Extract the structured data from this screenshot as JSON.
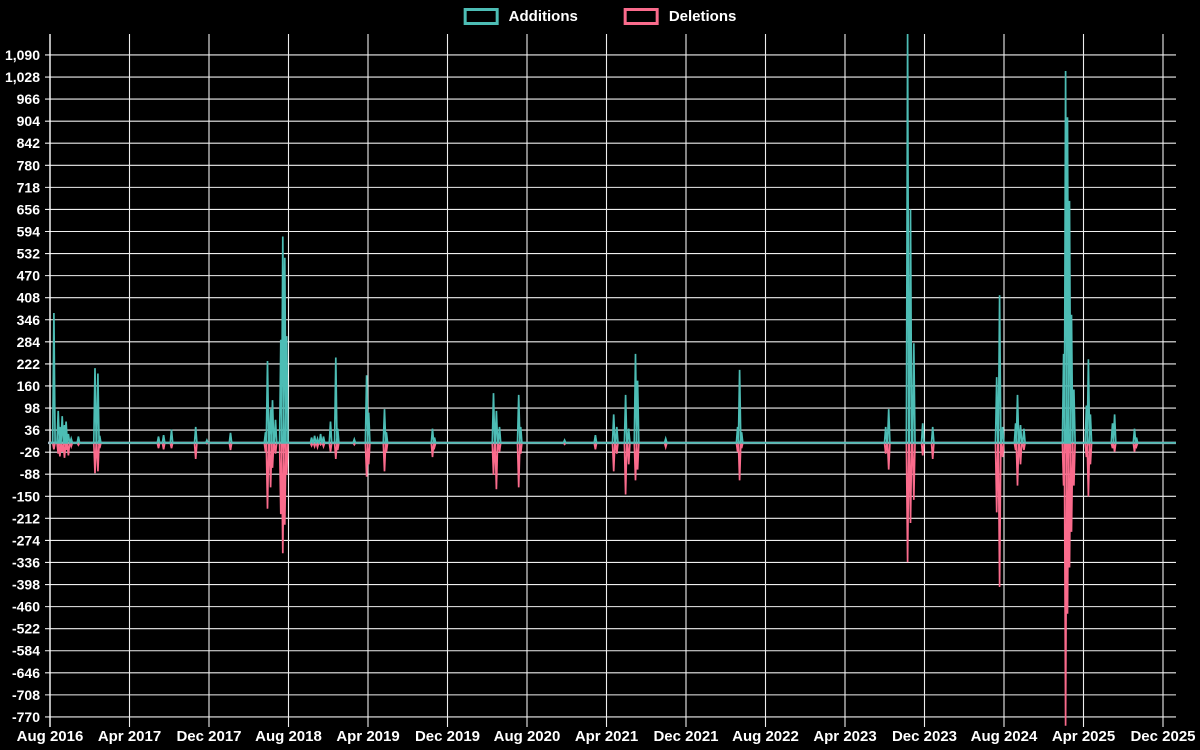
{
  "chart_data": {
    "type": "line",
    "title": "",
    "description": "Weekly additions (positive spikes) and deletions (negative spikes) over time; flat baseline at 0 between spikes.",
    "legend_position": "top-center",
    "background": "#000000",
    "grid": true,
    "colors": {
      "grid": "#eeeeee",
      "axis": "#ffffff",
      "zero_line": "#9db7c3",
      "text": "#ffffff",
      "background": "#000000"
    },
    "series": [
      {
        "name": "Additions",
        "color": "#4dbdb5",
        "sign": 1
      },
      {
        "name": "Deletions",
        "color": "#fa6b8c",
        "sign": -1
      }
    ],
    "ylim": [
      -798,
      1149
    ],
    "y_tick_step": 62,
    "y_ticks": [
      1090,
      1028,
      966,
      904,
      842,
      780,
      718,
      656,
      594,
      532,
      470,
      408,
      346,
      284,
      222,
      160,
      98,
      36,
      -26,
      -88,
      -150,
      -212,
      -274,
      -336,
      -398,
      -460,
      -522,
      -584,
      -646,
      -708,
      -770
    ],
    "x_tick_labels": [
      "Aug 2016",
      "Apr 2017",
      "Dec 2017",
      "Aug 2018",
      "Apr 2019",
      "Dec 2019",
      "Aug 2020",
      "Apr 2021",
      "Dec 2021",
      "Aug 2022",
      "Apr 2023",
      "Dec 2023",
      "Aug 2024",
      "Apr 2025",
      "Dec 2025"
    ],
    "x_start": "2016-08-01",
    "x_end": "2025-12-31",
    "baseline": 0,
    "notes": "Values estimated from gridlines. Additions spike 2023-10-10 is clipped at the plot top (>1,130); deletions spike 2025-02-07 is clipped at the plot bottom (beyond -770).",
    "events": [
      {
        "date": "2016-08-13",
        "additions": 365,
        "deletions": -18
      },
      {
        "date": "2016-08-26",
        "additions": 90,
        "deletions": -30
      },
      {
        "date": "2016-09-01",
        "additions": 45,
        "deletions": -38
      },
      {
        "date": "2016-09-08",
        "additions": 75,
        "deletions": -25
      },
      {
        "date": "2016-09-15",
        "additions": 50,
        "deletions": -42
      },
      {
        "date": "2016-09-20",
        "additions": 60,
        "deletions": -20
      },
      {
        "date": "2016-09-27",
        "additions": 25,
        "deletions": -35
      },
      {
        "date": "2016-10-05",
        "additions": 12,
        "deletions": -10
      },
      {
        "date": "2016-10-27",
        "additions": 18,
        "deletions": -6
      },
      {
        "date": "2016-12-17",
        "additions": 210,
        "deletions": -85
      },
      {
        "date": "2016-12-26",
        "additions": 195,
        "deletions": -80
      },
      {
        "date": "2017-01-01",
        "additions": 20,
        "deletions": -15
      },
      {
        "date": "2017-06-29",
        "additions": 18,
        "deletions": -15
      },
      {
        "date": "2017-07-14",
        "additions": 22,
        "deletions": -18
      },
      {
        "date": "2017-08-08",
        "additions": 38,
        "deletions": -15
      },
      {
        "date": "2017-10-21",
        "additions": 45,
        "deletions": -45
      },
      {
        "date": "2017-11-25",
        "additions": 8,
        "deletions": -2
      },
      {
        "date": "2018-02-06",
        "additions": 28,
        "deletions": -20
      },
      {
        "date": "2018-05-22",
        "additions": 30,
        "deletions": -25
      },
      {
        "date": "2018-05-28",
        "additions": 230,
        "deletions": -185
      },
      {
        "date": "2018-06-07",
        "additions": 95,
        "deletions": -125
      },
      {
        "date": "2018-06-13",
        "additions": 120,
        "deletions": -70
      },
      {
        "date": "2018-06-22",
        "additions": 65,
        "deletions": -30
      },
      {
        "date": "2018-07-08",
        "additions": 290,
        "deletions": -200
      },
      {
        "date": "2018-07-14",
        "additions": 580,
        "deletions": -310
      },
      {
        "date": "2018-07-20",
        "additions": 520,
        "deletions": -230
      },
      {
        "date": "2018-07-26",
        "additions": 300,
        "deletions": -90
      },
      {
        "date": "2018-10-11",
        "additions": 15,
        "deletions": -8
      },
      {
        "date": "2018-10-20",
        "additions": 20,
        "deletions": -10
      },
      {
        "date": "2018-10-29",
        "additions": 12,
        "deletions": -12
      },
      {
        "date": "2018-11-08",
        "additions": 25,
        "deletions": -5
      },
      {
        "date": "2018-11-17",
        "additions": 18,
        "deletions": -10
      },
      {
        "date": "2018-12-08",
        "additions": 60,
        "deletions": -25
      },
      {
        "date": "2018-12-24",
        "additions": 240,
        "deletions": -45
      },
      {
        "date": "2018-12-30",
        "additions": 40,
        "deletions": -20
      },
      {
        "date": "2019-02-20",
        "additions": 10,
        "deletions": -5
      },
      {
        "date": "2019-03-27",
        "additions": 190,
        "deletions": -95
      },
      {
        "date": "2019-04-03",
        "additions": 85,
        "deletions": -60
      },
      {
        "date": "2019-05-21",
        "additions": 95,
        "deletions": -80
      },
      {
        "date": "2019-05-27",
        "additions": 30,
        "deletions": -25
      },
      {
        "date": "2019-10-16",
        "additions": 40,
        "deletions": -40
      },
      {
        "date": "2019-10-22",
        "additions": 15,
        "deletions": -12
      },
      {
        "date": "2020-04-20",
        "additions": 140,
        "deletions": -90
      },
      {
        "date": "2020-04-29",
        "additions": 90,
        "deletions": -130
      },
      {
        "date": "2020-05-08",
        "additions": 45,
        "deletions": -25
      },
      {
        "date": "2020-07-06",
        "additions": 135,
        "deletions": -125
      },
      {
        "date": "2020-07-12",
        "additions": 45,
        "deletions": -30
      },
      {
        "date": "2020-11-25",
        "additions": 8,
        "deletions": -4
      },
      {
        "date": "2021-02-28",
        "additions": 22,
        "deletions": -18
      },
      {
        "date": "2021-04-23",
        "additions": 80,
        "deletions": -80
      },
      {
        "date": "2021-05-02",
        "additions": 45,
        "deletions": -30
      },
      {
        "date": "2021-05-29",
        "additions": 135,
        "deletions": -145
      },
      {
        "date": "2021-06-08",
        "additions": 40,
        "deletions": -60
      },
      {
        "date": "2021-06-29",
        "additions": 250,
        "deletions": -105
      },
      {
        "date": "2021-07-05",
        "additions": 175,
        "deletions": -75
      },
      {
        "date": "2021-09-30",
        "additions": 12,
        "deletions": -12
      },
      {
        "date": "2022-05-07",
        "additions": 45,
        "deletions": -25
      },
      {
        "date": "2022-05-13",
        "additions": 205,
        "deletions": -105
      },
      {
        "date": "2022-05-19",
        "additions": 30,
        "deletions": -15
      },
      {
        "date": "2023-08-04",
        "additions": 45,
        "deletions": -30
      },
      {
        "date": "2023-08-13",
        "additions": 95,
        "deletions": -75
      },
      {
        "date": "2023-10-10",
        "additions": 1150,
        "deletions": -335
      },
      {
        "date": "2023-10-19",
        "additions": 655,
        "deletions": -225
      },
      {
        "date": "2023-10-29",
        "additions": 280,
        "deletions": -160
      },
      {
        "date": "2023-11-26",
        "additions": 55,
        "deletions": -35
      },
      {
        "date": "2023-12-26",
        "additions": 45,
        "deletions": -45
      },
      {
        "date": "2024-07-09",
        "additions": 185,
        "deletions": -195
      },
      {
        "date": "2024-07-18",
        "additions": 415,
        "deletions": -405
      },
      {
        "date": "2024-07-27",
        "additions": 45,
        "deletions": -40
      },
      {
        "date": "2024-09-06",
        "additions": 55,
        "deletions": -20
      },
      {
        "date": "2024-09-12",
        "additions": 135,
        "deletions": -120
      },
      {
        "date": "2024-09-21",
        "additions": 50,
        "deletions": -60
      },
      {
        "date": "2024-10-01",
        "additions": 40,
        "deletions": -20
      },
      {
        "date": "2025-02-01",
        "additions": 250,
        "deletions": -120
      },
      {
        "date": "2025-02-07",
        "additions": 1045,
        "deletions": -795
      },
      {
        "date": "2025-02-13",
        "additions": 915,
        "deletions": -480
      },
      {
        "date": "2025-02-19",
        "additions": 680,
        "deletions": -350
      },
      {
        "date": "2025-02-25",
        "additions": 360,
        "deletions": -250
      },
      {
        "date": "2025-03-02",
        "additions": 150,
        "deletions": -120
      },
      {
        "date": "2025-04-10",
        "additions": 105,
        "deletions": -40
      },
      {
        "date": "2025-04-16",
        "additions": 235,
        "deletions": -150
      },
      {
        "date": "2025-04-22",
        "additions": 80,
        "deletions": -60
      },
      {
        "date": "2025-06-29",
        "additions": 55,
        "deletions": -15
      },
      {
        "date": "2025-07-05",
        "additions": 80,
        "deletions": -25
      },
      {
        "date": "2025-09-05",
        "additions": 40,
        "deletions": -25
      },
      {
        "date": "2025-09-11",
        "additions": 15,
        "deletions": -10
      }
    ]
  }
}
